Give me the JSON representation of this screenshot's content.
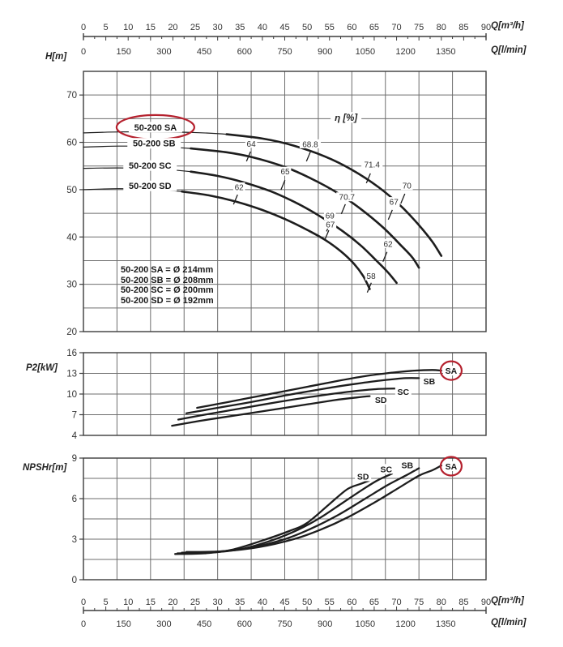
{
  "labels": {
    "head_axis": "H[m]",
    "power_axis": "P2[kW]",
    "npsh_axis": "NPSHr[m]",
    "q_m3h": "Q[m³/h]",
    "q_lmin": "Q[l/min]",
    "eta": "η [%]"
  },
  "legend": {
    "lines": [
      "50-200 SA = Ø 214mm",
      "50-200 SB = Ø 208mm",
      "50-200 SC = Ø 200mm",
      "50-200 SD = Ø 192mm"
    ]
  },
  "colors": {
    "curve": "#1d1d1d",
    "grid": "#6e6e6e",
    "border": "#3c3c3c",
    "axis_text": "#343434",
    "red_circle": "#b5212e",
    "background": "#ffffff"
  },
  "flow_axis": {
    "m3h_ticks": [
      0,
      5,
      10,
      15,
      20,
      25,
      30,
      35,
      40,
      45,
      50,
      55,
      60,
      65,
      70,
      75,
      80,
      85,
      90
    ],
    "lmin_ticks": [
      0,
      150,
      300,
      450,
      600,
      750,
      900,
      1050,
      1200,
      1350
    ],
    "m3h_max": 90,
    "lmin_to_m3h_factor": 0.06
  },
  "chart_data": [
    {
      "type": "line",
      "id": "head",
      "title": "Pump head curves 50-200",
      "xlabel": "Q[m³/h]",
      "ylabel": "H[m]",
      "xlim": [
        0,
        90
      ],
      "ylim": [
        20,
        75
      ],
      "ytick_labels": [
        70,
        60,
        50,
        40,
        30,
        20
      ],
      "grid_step_y": 5,
      "grid_cols": 12,
      "eta_label": {
        "text": "η [%]",
        "q": 58.7,
        "v": 65.2
      },
      "series": [
        {
          "name": "50-200 SA",
          "thick_from": 25.4,
          "points": [
            [
              0,
              62
            ],
            [
              8,
              62.2
            ],
            [
              16,
              62.2
            ],
            [
              24,
              62.1
            ],
            [
              32,
              61.7
            ],
            [
              40,
              60.8
            ],
            [
              47,
              59.3
            ],
            [
              54,
              57
            ],
            [
              60,
              54.2
            ],
            [
              66,
              50.5
            ],
            [
              71,
              46.5
            ],
            [
              75,
              42.5
            ],
            [
              78,
              39
            ],
            [
              80,
              36
            ]
          ]
        },
        {
          "name": "50-200 SB",
          "thick_from": 23.0,
          "points": [
            [
              0,
              59
            ],
            [
              8,
              59.2
            ],
            [
              16,
              59.1
            ],
            [
              24,
              58.7
            ],
            [
              32,
              57.9
            ],
            [
              38,
              56.8
            ],
            [
              45,
              54.8
            ],
            [
              51,
              52.3
            ],
            [
              57,
              49.2
            ],
            [
              62,
              45.9
            ],
            [
              67,
              42
            ],
            [
              71,
              38.2
            ],
            [
              73.5,
              35.7
            ],
            [
              75,
              33.5
            ]
          ]
        },
        {
          "name": "50-200 SC",
          "thick_from": 21.2,
          "points": [
            [
              0,
              54.5
            ],
            [
              8,
              54.6
            ],
            [
              16,
              54.4
            ],
            [
              24,
              53.8
            ],
            [
              30,
              52.9
            ],
            [
              36,
              51.5
            ],
            [
              42,
              49.6
            ],
            [
              48,
              47
            ],
            [
              53,
              44.3
            ],
            [
              58,
              41.2
            ],
            [
              62,
              38.2
            ],
            [
              65.5,
              35
            ],
            [
              68,
              32.6
            ],
            [
              70,
              30.3
            ]
          ]
        },
        {
          "name": "50-200 SD",
          "thick_from": 19.8,
          "points": [
            [
              0,
              50
            ],
            [
              8,
              50.2
            ],
            [
              16,
              50
            ],
            [
              22,
              49.6
            ],
            [
              28,
              48.8
            ],
            [
              34,
              47.5
            ],
            [
              40,
              45.7
            ],
            [
              45,
              43.8
            ],
            [
              50,
              41.5
            ],
            [
              54,
              39.4
            ],
            [
              57.5,
              37
            ],
            [
              60.5,
              34.3
            ],
            [
              62.5,
              31.8
            ],
            [
              64,
              29
            ]
          ]
        }
      ],
      "curve_labels": [
        {
          "text": "50-200 SA",
          "q": 16.1,
          "v": 63.2,
          "circled": true
        },
        {
          "text": "50-200 SB",
          "q": 15.8,
          "v": 59.8,
          "circled": false
        },
        {
          "text": "50-200 SC",
          "q": 14.9,
          "v": 55.1,
          "circled": false
        },
        {
          "text": "50-200 SD",
          "q": 14.9,
          "v": 50.8,
          "circled": false
        }
      ],
      "efficiency_labels": [
        {
          "text": "68.8",
          "lq": 50.7,
          "lv": 59.6,
          "tq": 50.3,
          "tv": 57.0
        },
        {
          "text": "64",
          "lq": 37.5,
          "lv": 59.7,
          "tq": 36.9,
          "tv": 57.0
        },
        {
          "text": "71.4",
          "lq": 64.5,
          "lv": 55.3,
          "tq": 63.7,
          "tv": 52.4
        },
        {
          "text": "65",
          "lq": 45.1,
          "lv": 53.8,
          "tq": 44.6,
          "tv": 51.0
        },
        {
          "text": "70",
          "lq": 72.3,
          "lv": 50.8,
          "tq": 71.4,
          "tv": 48.1
        },
        {
          "text": "70.7",
          "lq": 58.9,
          "lv": 48.4,
          "tq": 58.1,
          "tv": 45.9
        },
        {
          "text": "67",
          "lq": 69.4,
          "lv": 47.4,
          "tq": 68.6,
          "tv": 44.7
        },
        {
          "text": "62",
          "lq": 34.8,
          "lv": 50.5,
          "tq": 34.0,
          "tv": 47.9
        },
        {
          "text": "69",
          "lq": 55.1,
          "lv": 44.5,
          "tq": 54.8,
          "tv": 42.2
        },
        {
          "text": "67",
          "lq": 55.2,
          "lv": 42.6,
          "tq": 54.4,
          "tv": 40.4
        },
        {
          "text": "62",
          "lq": 68.1,
          "lv": 38.5,
          "tq": 67.4,
          "tv": 35.8
        },
        {
          "text": "58",
          "lq": 64.3,
          "lv": 31.7,
          "tq": 63.9,
          "tv": 29.3
        }
      ]
    },
    {
      "type": "line",
      "id": "power",
      "title": "Shaft power curves 50-200",
      "xlabel": "Q[m³/h]",
      "ylabel": "P2[kW]",
      "xlim": [
        0,
        90
      ],
      "ylim": [
        4,
        16
      ],
      "ytick_labels": [
        16,
        13,
        10,
        7,
        4
      ],
      "grid_step_y": 3,
      "grid_cols": 12,
      "series": [
        {
          "name": "SA",
          "points": [
            [
              25.4,
              8.0
            ],
            [
              32,
              8.8
            ],
            [
              40,
              9.8
            ],
            [
              48,
              10.8
            ],
            [
              56,
              11.8
            ],
            [
              63,
              12.6
            ],
            [
              69,
              13.1
            ],
            [
              74,
              13.4
            ],
            [
              78,
              13.5
            ],
            [
              80,
              13.4
            ]
          ]
        },
        {
          "name": "SB",
          "points": [
            [
              23,
              7.2
            ],
            [
              30,
              8.0
            ],
            [
              38,
              8.9
            ],
            [
              46,
              9.9
            ],
            [
              54,
              10.8
            ],
            [
              61,
              11.5
            ],
            [
              67,
              12.0
            ],
            [
              72,
              12.3
            ],
            [
              75,
              12.3
            ]
          ]
        },
        {
          "name": "SC",
          "points": [
            [
              21.2,
              6.3
            ],
            [
              28,
              7.1
            ],
            [
              36,
              8.0
            ],
            [
              44,
              8.9
            ],
            [
              52,
              9.7
            ],
            [
              59,
              10.3
            ],
            [
              65,
              10.7
            ],
            [
              70,
              10.8
            ]
          ]
        },
        {
          "name": "SD",
          "points": [
            [
              19.8,
              5.4
            ],
            [
              26,
              6.1
            ],
            [
              34,
              6.9
            ],
            [
              42,
              7.7
            ],
            [
              50,
              8.5
            ],
            [
              56,
              9.1
            ],
            [
              61,
              9.5
            ],
            [
              64,
              9.7
            ]
          ]
        }
      ],
      "curve_labels": [
        {
          "text": "SA",
          "q": 82.2,
          "v": 13.4,
          "circled": true
        },
        {
          "text": "SB",
          "q": 77.3,
          "v": 11.9,
          "circled": false
        },
        {
          "text": "SC",
          "q": 71.5,
          "v": 10.35,
          "circled": false
        },
        {
          "text": "SD",
          "q": 66.5,
          "v": 9.2,
          "circled": false
        }
      ]
    },
    {
      "type": "line",
      "id": "npsh",
      "title": "NPSH required curves 50-200",
      "xlabel": "Q[m³/h]",
      "ylabel": "NPSHr[m]",
      "xlim": [
        0,
        90
      ],
      "ylim": [
        0,
        9
      ],
      "ytick_labels": [
        9,
        6,
        3,
        0
      ],
      "grid_step_y": 1.5,
      "grid_cols": 12,
      "series": [
        {
          "name": "SA",
          "points": [
            [
              23,
              2.05
            ],
            [
              31,
              2.1
            ],
            [
              39,
              2.4
            ],
            [
              47,
              3.0
            ],
            [
              53,
              3.7
            ],
            [
              59,
              4.6
            ],
            [
              65,
              5.7
            ],
            [
              70,
              6.7
            ],
            [
              75,
              7.7
            ],
            [
              78,
              8.1
            ],
            [
              80,
              8.45
            ]
          ]
        },
        {
          "name": "SB",
          "points": [
            [
              22,
              2.0
            ],
            [
              29,
              2.05
            ],
            [
              37,
              2.35
            ],
            [
              45,
              3.0
            ],
            [
              51,
              3.8
            ],
            [
              57,
              4.8
            ],
            [
              63,
              6.0
            ],
            [
              68,
              7.0
            ],
            [
              72,
              7.7
            ],
            [
              75,
              8.25
            ]
          ]
        },
        {
          "name": "SC",
          "points": [
            [
              21,
              1.95
            ],
            [
              28,
              2.0
            ],
            [
              35,
              2.25
            ],
            [
              42,
              2.9
            ],
            [
              48,
              3.7
            ],
            [
              53,
              4.6
            ],
            [
              58,
              5.7
            ],
            [
              63,
              6.8
            ],
            [
              66,
              7.4
            ],
            [
              69,
              7.85
            ]
          ]
        },
        {
          "name": "SD",
          "points": [
            [
              20.5,
              1.9
            ],
            [
              27,
              1.95
            ],
            [
              33,
              2.2
            ],
            [
              40,
              2.9
            ],
            [
              46,
              3.6
            ],
            [
              50,
              4.2
            ],
            [
              55,
              5.6
            ],
            [
              59,
              6.7
            ],
            [
              62,
              7.1
            ],
            [
              64,
              7.35
            ]
          ]
        }
      ],
      "curve_labels": [
        {
          "text": "SD",
          "q": 62.5,
          "v": 7.65,
          "circled": false
        },
        {
          "text": "SC",
          "q": 67.7,
          "v": 8.2,
          "circled": false
        },
        {
          "text": "SB",
          "q": 72.4,
          "v": 8.5,
          "circled": false
        },
        {
          "text": "SA",
          "q": 82.2,
          "v": 8.4,
          "circled": true
        }
      ]
    }
  ]
}
